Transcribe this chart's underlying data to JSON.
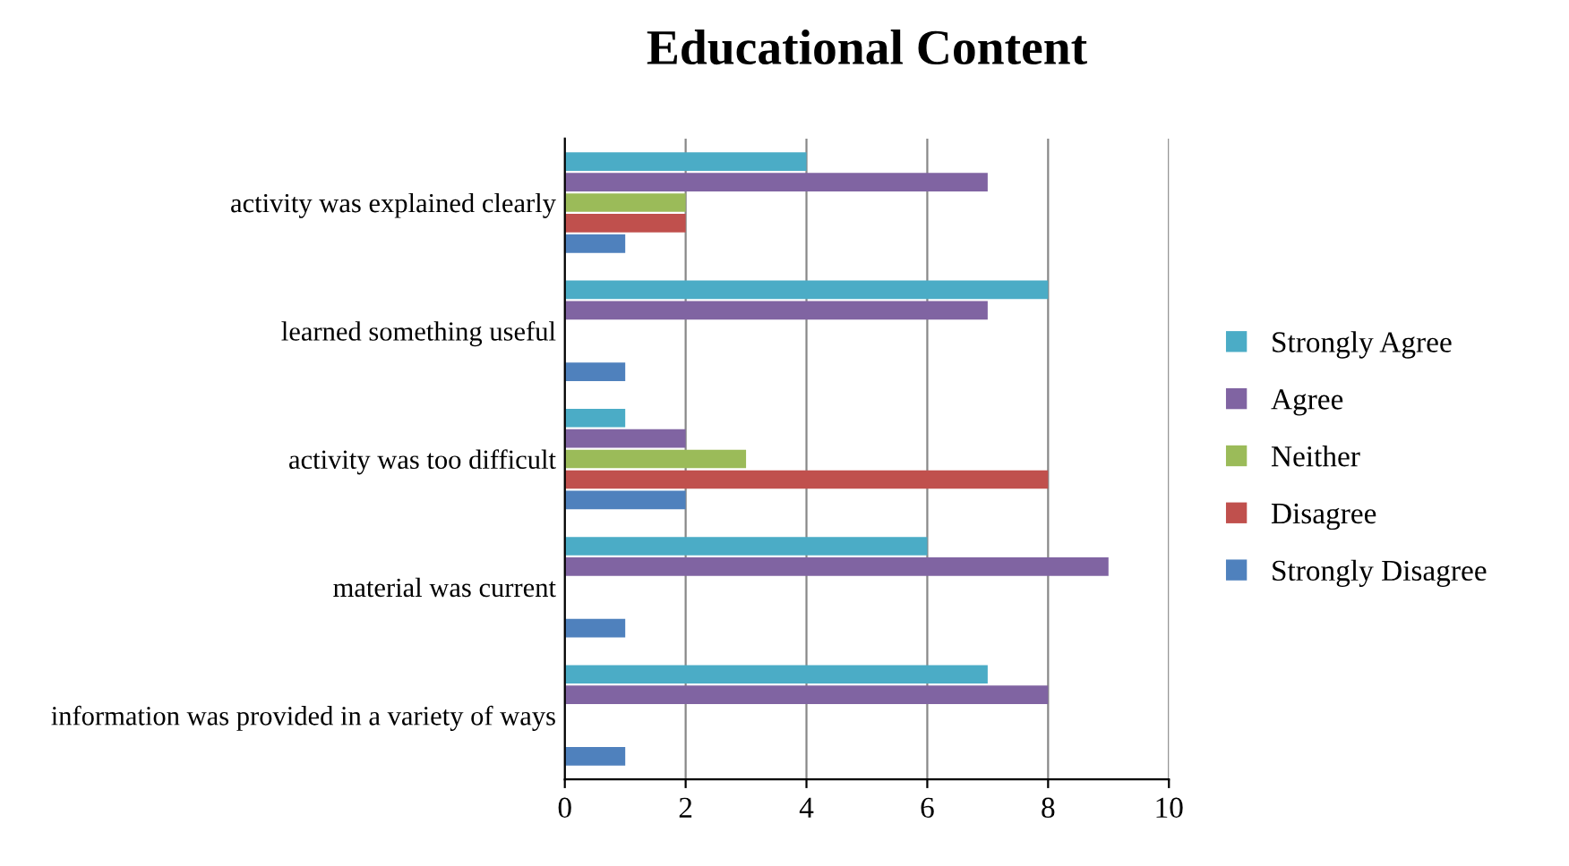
{
  "chart_data": {
    "type": "bar",
    "orientation": "horizontal",
    "title": "Educational Content",
    "categories": [
      "activity was explained clearly",
      "learned something useful",
      "activity was too difficult",
      "material was current",
      "information was provided in a variety of ways"
    ],
    "series": [
      {
        "name": "Strongly Agree",
        "color": "#4bacc6",
        "values": [
          4,
          8,
          1,
          6,
          7
        ]
      },
      {
        "name": "Agree",
        "color": "#8064a2",
        "values": [
          7,
          7,
          2,
          9,
          8
        ]
      },
      {
        "name": "Neither",
        "color": "#9bbb59",
        "values": [
          2,
          0,
          3,
          0,
          0
        ]
      },
      {
        "name": "Disagree",
        "color": "#c0504d",
        "values": [
          2,
          0,
          8,
          0,
          0
        ]
      },
      {
        "name": "Strongly Disagree",
        "color": "#4f81bd",
        "values": [
          1,
          1,
          2,
          1,
          1
        ]
      }
    ],
    "xlim": [
      0,
      10
    ],
    "xticks": [
      0,
      2,
      4,
      6,
      8,
      10
    ],
    "grid": "x",
    "legend": "right"
  }
}
